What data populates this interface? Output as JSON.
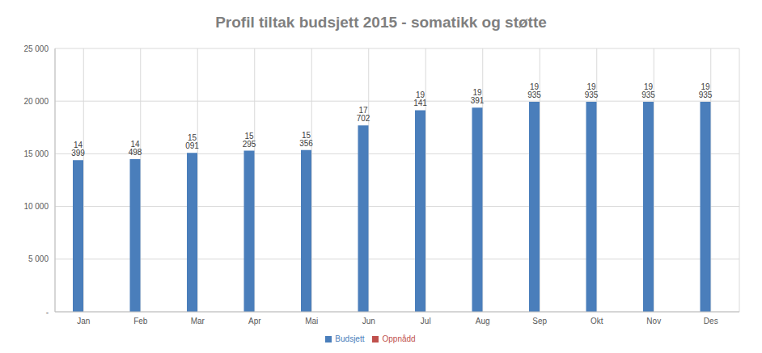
{
  "chart_data": {
    "type": "bar",
    "title": "Profil tiltak budsjett 2015 - somatikk og støtte",
    "categories": [
      "Jan",
      "Feb",
      "Mar",
      "Apr",
      "Mai",
      "Jun",
      "Jul",
      "Aug",
      "Sep",
      "Okt",
      "Nov",
      "Des"
    ],
    "series": [
      {
        "name": "Budsjett",
        "color": "#4a7ebb",
        "values": [
          14399,
          14498,
          15091,
          15295,
          15356,
          17702,
          19141,
          19391,
          19935,
          19935,
          19935,
          19935
        ],
        "value_labels": [
          "14 399",
          "14 498",
          "15 091",
          "15 295",
          "15 356",
          "17 702",
          "19 141",
          "19 391",
          "19 935",
          "19 935",
          "19 935",
          "19 935"
        ]
      },
      {
        "name": "Oppnådd",
        "color": "#c0504d",
        "values": [
          null,
          null,
          null,
          null,
          null,
          null,
          null,
          null,
          null,
          null,
          null,
          null
        ]
      }
    ],
    "ylim": [
      0,
      25000
    ],
    "yticks": [
      {
        "value": 0,
        "label": "-"
      },
      {
        "value": 5000,
        "label": "5 000"
      },
      {
        "value": 10000,
        "label": "10 000"
      },
      {
        "value": 15000,
        "label": "15 000"
      },
      {
        "value": 20000,
        "label": "20 000"
      },
      {
        "value": 25000,
        "label": "25 000"
      }
    ],
    "grid": true,
    "legend": "bottom",
    "data_labels": true
  }
}
